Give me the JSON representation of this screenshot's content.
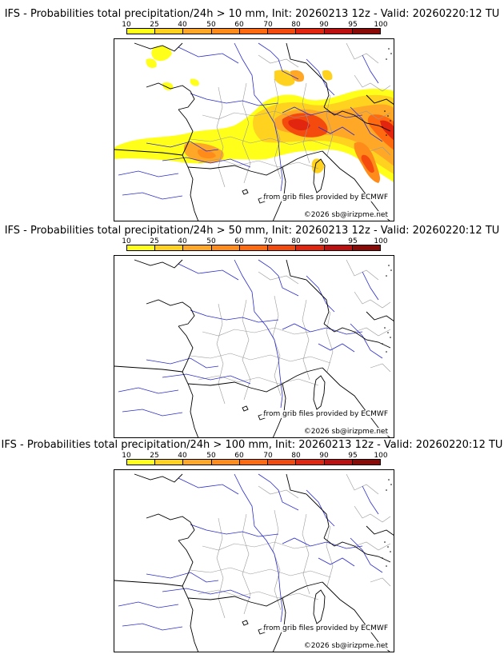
{
  "color_scale": {
    "labels": [
      "10",
      "25",
      "40",
      "50",
      "60",
      "70",
      "80",
      "90",
      "95",
      "100"
    ],
    "colors": [
      "#ffff1a",
      "#ffd21f",
      "#ffa726",
      "#ff8c1a",
      "#ff6a10",
      "#f44a0e",
      "#e1250f",
      "#bb0f10",
      "#8a0a08",
      "#5a0605"
    ]
  },
  "panels": [
    {
      "title": "IFS - Probabilities total precipitation/24h > 10 mm, Init: 20260213 12z - Valid: 20260220:12 TU",
      "threshold": "10 mm",
      "has_precip": true,
      "credit": "from grib files provided by ECMWF",
      "copyright": "©2026 sb@irizpme.net"
    },
    {
      "title": "IFS - Probabilities total precipitation/24h > 50 mm, Init: 20260213 12z - Valid: 20260220:12 TU",
      "threshold": "50 mm",
      "has_precip": false,
      "credit": "from grib files provided by ECMWF",
      "copyright": "©2026 sb@irizpme.net"
    },
    {
      "title": "IFS - Probabilities total precipitation/24h > 100 mm, Init: 20260213 12z - Valid: 20260220:12 TU",
      "threshold": "100 mm",
      "has_precip": false,
      "credit": "from grib files provided by ECMWF",
      "copyright": "©2026 sb@irizpme.net"
    }
  ]
}
